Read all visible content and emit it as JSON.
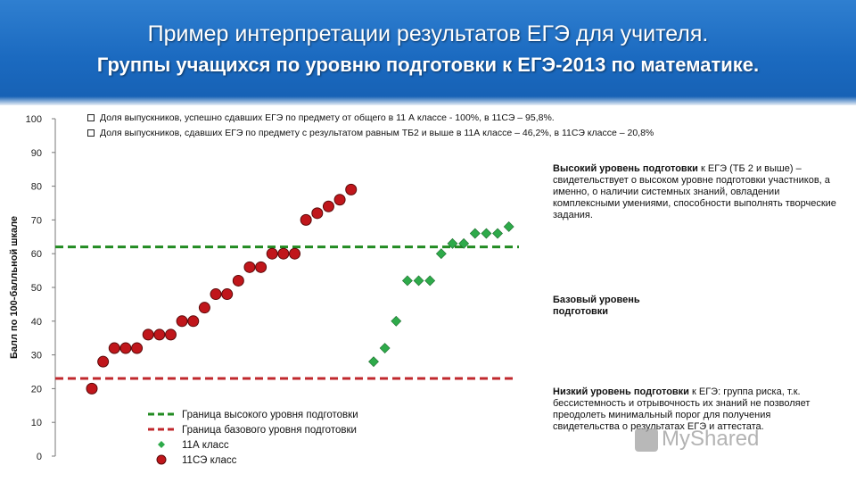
{
  "header": {
    "title": "Пример интерпретации результатов ЕГЭ для учителя.",
    "subtitle": "Группы учащихся по уровню подготовки к ЕГЭ-2013 по математике."
  },
  "notes": [
    "Доля выпускников, успешно сдавших ЕГЭ по предмету от общего в 11 А классе - 100%, в 11СЭ – 95,8%.",
    "Доля выпускников, сдавших ЕГЭ по предмету с результатом равным ТБ2 и выше  в 11А классе  – 46,2%, в 11СЭ классе – 20,8%"
  ],
  "side": {
    "high_bold": "Высокий уровень подготовки",
    "high_text": " к ЕГЭ (ТБ 2 и выше) – свидетельствует о высоком уровне подготовки участников, а именно, о наличии системных знаний, овладении комплексными умениями, способности выполнять творческие задания.",
    "base_bold": "Базовый уровень подготовки",
    "low_bold": "Низкий уровень подготовки",
    "low_text": " к ЕГЭ: группа риска, т.к. бессистемность и отрывочность их знаний не позволяет преодолеть минимальный порог для получения свидетельства о результатах ЕГЭ и аттестата."
  },
  "watermark": "MyShared",
  "chart_data": {
    "type": "scatter",
    "ylabel": "Балл по 100-балльной шкале",
    "ylim": [
      0,
      100
    ],
    "yticks": [
      0,
      10,
      20,
      30,
      40,
      50,
      60,
      70,
      80,
      90,
      100
    ],
    "grid": false,
    "legend_position": "bottom-left",
    "reference_lines": [
      {
        "name": "Граница высокого уровня подготовки",
        "y": 62,
        "color": "#228b22",
        "style": "dashed"
      },
      {
        "name": "Граница базового уровня подготовки",
        "y": 23,
        "color": "#c0282d",
        "style": "dashed"
      }
    ],
    "series": [
      {
        "name": "11А класс",
        "marker": "diamond",
        "color": "#2eaa4a",
        "x": [
          26,
          27,
          28,
          29,
          30,
          31,
          32,
          33,
          34,
          35,
          36,
          37,
          38
        ],
        "y": [
          28,
          32,
          40,
          52,
          52,
          52,
          60,
          63,
          63,
          66,
          66,
          66,
          68
        ]
      },
      {
        "name": "11СЭ класс",
        "marker": "circle",
        "color": "#c0161b",
        "x": [
          1,
          2,
          3,
          4,
          5,
          6,
          7,
          8,
          9,
          10,
          11,
          12,
          13,
          14,
          15,
          16,
          17,
          18,
          19,
          20,
          21,
          22,
          23,
          24
        ],
        "y": [
          20,
          28,
          32,
          32,
          32,
          36,
          36,
          36,
          40,
          40,
          44,
          48,
          48,
          52,
          56,
          56,
          60,
          60,
          60,
          70,
          72,
          74,
          76,
          79
        ]
      }
    ]
  }
}
